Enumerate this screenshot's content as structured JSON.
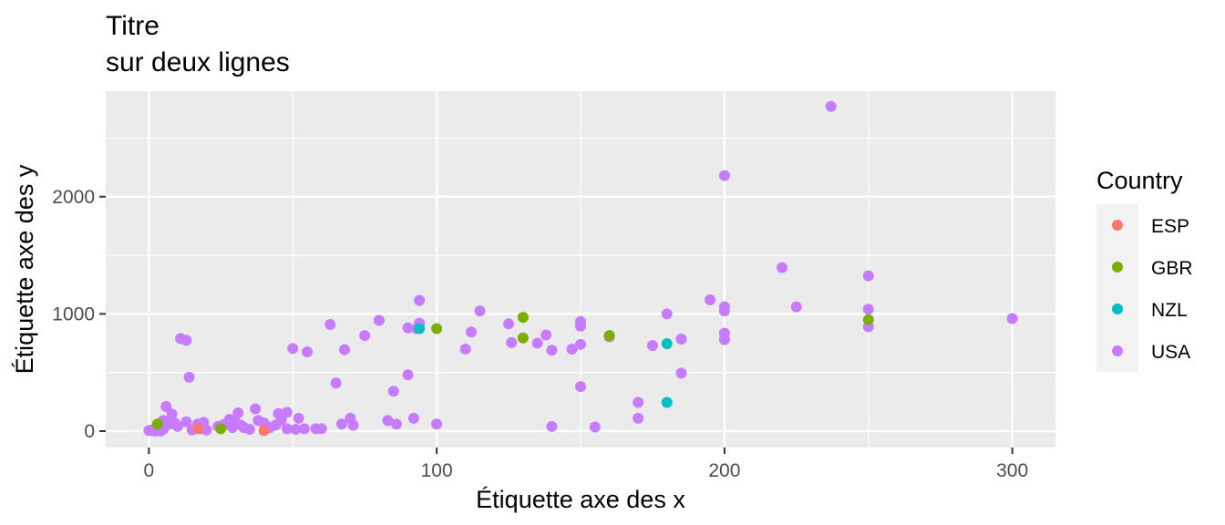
{
  "chart_data": {
    "type": "scatter",
    "title_lines": [
      "Titre",
      "sur deux lignes"
    ],
    "xlabel": "Étiquette axe des x",
    "ylabel": "Étiquette axe des y",
    "xlim": [
      -15,
      315
    ],
    "ylim": [
      -140,
      2900
    ],
    "x_ticks": [
      0,
      100,
      200,
      300
    ],
    "x_tick_labels": [
      "0",
      "100",
      "200",
      "300"
    ],
    "y_ticks": [
      0,
      1000,
      2000
    ],
    "y_tick_labels": [
      "0",
      "1000",
      "2000"
    ],
    "grid": true,
    "legend": {
      "title": "Country",
      "position": "right",
      "entries": [
        {
          "label": "ESP",
          "color": "#F8766D"
        },
        {
          "label": "GBR",
          "color": "#7CAE00"
        },
        {
          "label": "NZL",
          "color": "#00BFC4"
        },
        {
          "label": "USA",
          "color": "#C77CFF"
        }
      ]
    },
    "series": [
      {
        "name": "USA",
        "color": "#C77CFF",
        "points": [
          [
            0,
            5
          ],
          [
            1,
            10
          ],
          [
            2,
            0
          ],
          [
            3,
            5
          ],
          [
            4,
            0
          ],
          [
            5,
            15
          ],
          [
            5,
            90
          ],
          [
            6,
            210
          ],
          [
            7,
            60
          ],
          [
            8,
            145
          ],
          [
            9,
            70
          ],
          [
            10,
            40
          ],
          [
            11,
            790
          ],
          [
            13,
            775
          ],
          [
            13,
            80
          ],
          [
            14,
            460
          ],
          [
            15,
            10
          ],
          [
            17,
            60
          ],
          [
            18,
            20
          ],
          [
            19,
            75
          ],
          [
            20,
            10
          ],
          [
            24,
            40
          ],
          [
            26,
            55
          ],
          [
            28,
            100
          ],
          [
            29,
            30
          ],
          [
            30,
            80
          ],
          [
            31,
            155
          ],
          [
            32,
            50
          ],
          [
            33,
            30
          ],
          [
            35,
            15
          ],
          [
            37,
            190
          ],
          [
            38,
            90
          ],
          [
            40,
            70
          ],
          [
            42,
            30
          ],
          [
            44,
            50
          ],
          [
            45,
            150
          ],
          [
            46,
            95
          ],
          [
            48,
            20
          ],
          [
            48,
            160
          ],
          [
            50,
            705
          ],
          [
            51,
            15
          ],
          [
            52,
            110
          ],
          [
            54,
            20
          ],
          [
            55,
            675
          ],
          [
            58,
            20
          ],
          [
            60,
            20
          ],
          [
            63,
            910
          ],
          [
            65,
            410
          ],
          [
            67,
            60
          ],
          [
            68,
            695
          ],
          [
            70,
            110
          ],
          [
            71,
            50
          ],
          [
            75,
            815
          ],
          [
            80,
            945
          ],
          [
            83,
            90
          ],
          [
            85,
            340
          ],
          [
            86,
            60
          ],
          [
            90,
            880
          ],
          [
            90,
            480
          ],
          [
            92,
            110
          ],
          [
            93,
            875
          ],
          [
            94,
            920
          ],
          [
            94,
            1115
          ],
          [
            100,
            60
          ],
          [
            110,
            700
          ],
          [
            112,
            845
          ],
          [
            115,
            1025
          ],
          [
            125,
            915
          ],
          [
            126,
            755
          ],
          [
            135,
            750
          ],
          [
            138,
            820
          ],
          [
            140,
            690
          ],
          [
            140,
            40
          ],
          [
            147,
            700
          ],
          [
            150,
            935
          ],
          [
            150,
            895
          ],
          [
            150,
            740
          ],
          [
            150,
            380
          ],
          [
            155,
            35
          ],
          [
            160,
            805
          ],
          [
            170,
            245
          ],
          [
            170,
            110
          ],
          [
            175,
            730
          ],
          [
            180,
            1000
          ],
          [
            185,
            785
          ],
          [
            185,
            495
          ],
          [
            195,
            1120
          ],
          [
            200,
            2180
          ],
          [
            200,
            1060
          ],
          [
            200,
            1025
          ],
          [
            200,
            835
          ],
          [
            200,
            780
          ],
          [
            220,
            1395
          ],
          [
            225,
            1060
          ],
          [
            237,
            2770
          ],
          [
            250,
            1325
          ],
          [
            250,
            1040
          ],
          [
            250,
            890
          ],
          [
            300,
            960
          ]
        ]
      },
      {
        "name": "GBR",
        "color": "#7CAE00",
        "points": [
          [
            3,
            60
          ],
          [
            25,
            20
          ],
          [
            100,
            875
          ],
          [
            130,
            970
          ],
          [
            130,
            795
          ],
          [
            160,
            815
          ],
          [
            250,
            950
          ]
        ]
      },
      {
        "name": "NZL",
        "color": "#00BFC4",
        "points": [
          [
            94,
            875
          ],
          [
            180,
            745
          ],
          [
            180,
            245
          ]
        ]
      },
      {
        "name": "ESP",
        "color": "#F8766D",
        "points": [
          [
            17,
            20
          ],
          [
            40,
            5
          ]
        ]
      }
    ]
  }
}
